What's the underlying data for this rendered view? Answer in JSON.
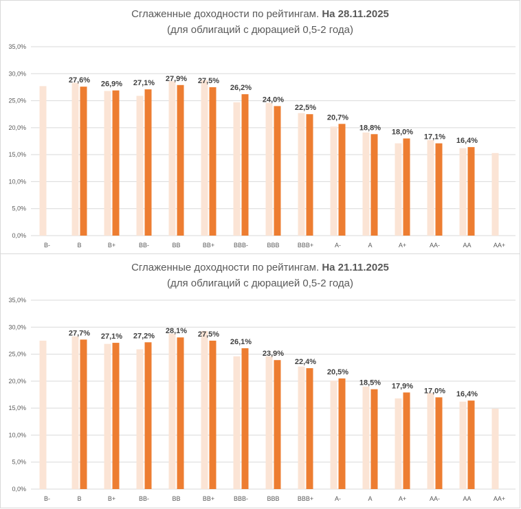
{
  "colors": {
    "bar_prev": "#fbe4d5",
    "bar_curr": "#ed7d31",
    "grid": "#d9d9d9",
    "text": "#595959"
  },
  "chart_data": [
    {
      "type": "bar",
      "title_prefix": "Сглаженные доходности по рейтингам. ",
      "title_bold": "На 28.11.2025",
      "subtitle": "(для облигаций с дюрацией 0,5-2 года)",
      "xlabel": "",
      "ylabel": "",
      "ylim": [
        0,
        35
      ],
      "yticks": [
        "0,0%",
        "5,0%",
        "10,0%",
        "15,0%",
        "20,0%",
        "25,0%",
        "30,0%",
        "35,0%"
      ],
      "grid": true,
      "categories": [
        "B-",
        "B",
        "B+",
        "BB-",
        "BB",
        "BB+",
        "BBB-",
        "BBB",
        "BBB+",
        "A-",
        "A",
        "A+",
        "AA-",
        "AA",
        "AA+"
      ],
      "series": [
        {
          "values": [
            27.7,
            28.3,
            26.8,
            25.9,
            28.6,
            28.8,
            24.7,
            24.6,
            22.7,
            20.2,
            19.1,
            17.1,
            17.7,
            16.2,
            15.3
          ]
        },
        {
          "values": [
            null,
            27.6,
            26.9,
            27.1,
            27.9,
            27.5,
            26.2,
            24.0,
            22.5,
            20.7,
            18.8,
            18.0,
            17.1,
            16.4,
            null
          ]
        }
      ],
      "data_labels": [
        "",
        "27,6%",
        "26,9%",
        "27,1%",
        "27,9%",
        "27,5%",
        "26,2%",
        "24,0%",
        "22,5%",
        "20,7%",
        "18,8%",
        "18,0%",
        "17,1%",
        "16,4%",
        ""
      ]
    },
    {
      "type": "bar",
      "title_prefix": "Сглаженные доходности по рейтингам. ",
      "title_bold": "На 21.11.2025",
      "subtitle": "(для облигаций с дюрацией 0,5-2 года)",
      "xlabel": "",
      "ylabel": "",
      "ylim": [
        0,
        35
      ],
      "yticks": [
        "0,0%",
        "5,0%",
        "10,0%",
        "15,0%",
        "20,0%",
        "25,0%",
        "30,0%",
        "35,0%"
      ],
      "grid": true,
      "categories": [
        "B-",
        "B",
        "B+",
        "BB-",
        "BB",
        "BB+",
        "BBB-",
        "BBB",
        "BBB+",
        "A-",
        "A",
        "A+",
        "AA-",
        "AA",
        "AA+"
      ],
      "series": [
        {
          "values": [
            27.5,
            28.3,
            26.9,
            25.9,
            28.8,
            29.3,
            24.6,
            24.6,
            22.7,
            20.1,
            19.0,
            16.8,
            17.8,
            16.2,
            14.9
          ]
        },
        {
          "values": [
            null,
            27.7,
            27.1,
            27.2,
            28.1,
            27.5,
            26.1,
            23.9,
            22.4,
            20.5,
            18.5,
            17.9,
            17.0,
            16.4,
            null
          ]
        }
      ],
      "data_labels": [
        "",
        "27,7%",
        "27,1%",
        "27,2%",
        "28,1%",
        "27,5%",
        "26,1%",
        "23,9%",
        "22,4%",
        "20,5%",
        "18,5%",
        "17,9%",
        "17,0%",
        "16,4%",
        ""
      ]
    }
  ]
}
